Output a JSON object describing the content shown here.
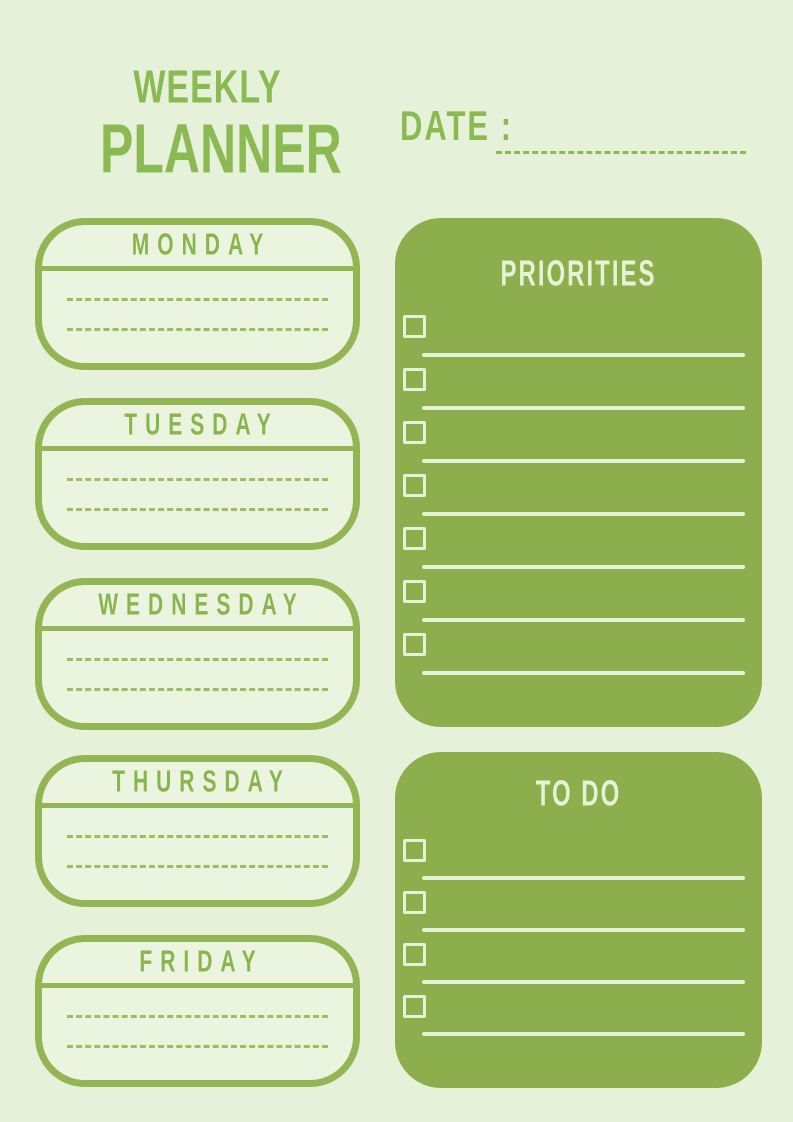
{
  "planner": {
    "title_line1": "WEEKLY",
    "title_line2": "PLANNER",
    "date_label": "DATE :"
  },
  "days": [
    {
      "label": "MONDAY",
      "line_count": 2
    },
    {
      "label": "TUESDAY",
      "line_count": 2
    },
    {
      "label": "WEDNESDAY",
      "line_count": 2
    },
    {
      "label": "THURSDAY",
      "line_count": 2
    },
    {
      "label": "FRIDAY",
      "line_count": 2
    }
  ],
  "priorities": {
    "title": "PRIORITIES",
    "item_count": 7
  },
  "todo": {
    "title": "TO DO",
    "item_count": 4
  },
  "colors": {
    "page_background": "#e5f2d9",
    "card_background": "#eaf4de",
    "panel_green": "#8dae4c",
    "border_green": "#93b553",
    "text_green": "#8cba52",
    "dashed_line_green": "#9ac05e",
    "light_on_green": "#e6f2d6"
  }
}
